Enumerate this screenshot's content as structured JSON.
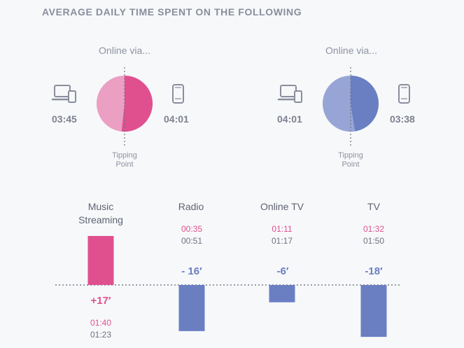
{
  "title": "AVERAGE DAILY TIME SPENT ON THE FOLLOWING",
  "colors": {
    "pink": "#e0508f",
    "pink_light": "#eb9fc2",
    "blue": "#6a7fc2",
    "blue_light": "#97a5d6",
    "text_muted": "#8e92a0"
  },
  "pies": [
    {
      "label": "Online via...",
      "computer_time": "03:45",
      "mobile_time": "04:01",
      "computer_value_min": 225,
      "mobile_value_min": 241,
      "tipping_label_1": "Tipping",
      "tipping_label_2": "Point",
      "color_computer": "#eb9fc2",
      "color_mobile": "#e0508f"
    },
    {
      "label": "Online via...",
      "computer_time": "04:01",
      "mobile_time": "03:38",
      "computer_value_min": 241,
      "mobile_value_min": 218,
      "tipping_label_1": "Tipping",
      "tipping_label_2": "Point",
      "color_computer": "#97a5d6",
      "color_mobile": "#6a7fc2"
    }
  ],
  "chart_data": {
    "type": "bar",
    "categories": [
      "Music Streaming",
      "Radio",
      "Online TV",
      "TV"
    ],
    "category_lines": [
      [
        "Music",
        "Streaming"
      ],
      [
        "Radio"
      ],
      [
        "Online TV"
      ],
      [
        "TV"
      ]
    ],
    "values": [
      17,
      -16,
      -6,
      -18
    ],
    "value_labels": [
      "+17′",
      "- 16′",
      "-6′",
      "-18′"
    ],
    "unit": "minutes",
    "time_pink": [
      "01:40",
      "00:35",
      "01:11",
      "01:32"
    ],
    "time_gray": [
      "01:23",
      "00:51",
      "01:17",
      "01:50"
    ],
    "ylim": [
      -20,
      20
    ],
    "grid": false
  }
}
